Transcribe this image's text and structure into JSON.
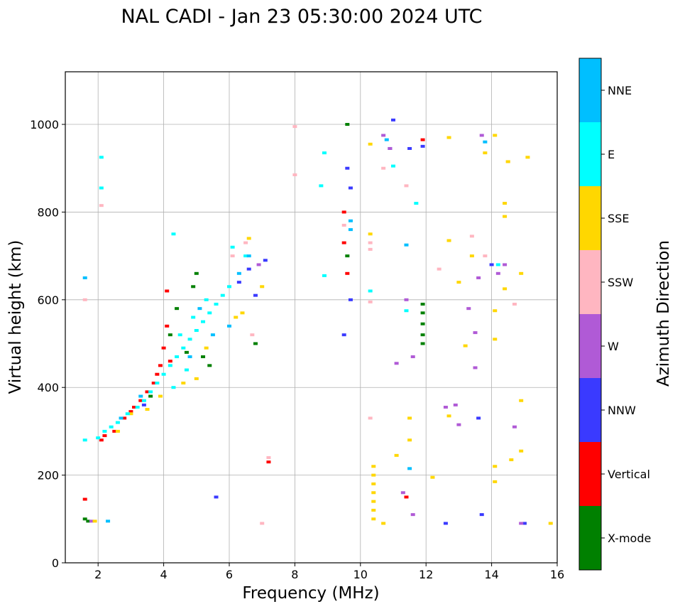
{
  "chart_data": {
    "type": "scatter",
    "title": "NAL CADI - Jan 23 05:30:00 2024 UTC",
    "xlabel": "Frequency (MHz)",
    "ylabel": "Virtual height (km)",
    "xlim": [
      1,
      16
    ],
    "ylim": [
      0,
      1120
    ],
    "xticks": [
      2,
      4,
      6,
      8,
      10,
      12,
      14,
      16
    ],
    "yticks": [
      0,
      200,
      400,
      600,
      800,
      1000
    ],
    "grid": true,
    "colorbar": {
      "label": "Azimuth Direction",
      "categories": [
        {
          "name": "X-mode",
          "color": "#008000"
        },
        {
          "name": "Vertical",
          "color": "#ff0000"
        },
        {
          "name": "NNW",
          "color": "#3a3aff"
        },
        {
          "name": "W",
          "color": "#b05ad6"
        },
        {
          "name": "SSW",
          "color": "#ffb6c1"
        },
        {
          "name": "SSE",
          "color": "#ffd700"
        },
        {
          "name": "E",
          "color": "#00ffff"
        },
        {
          "name": "NNE",
          "color": "#00bfff"
        }
      ]
    },
    "series": [
      {
        "name": "X-mode",
        "points": [
          [
            1.6,
            100
          ],
          [
            1.7,
            95
          ],
          [
            4.2,
            520
          ],
          [
            4.4,
            580
          ],
          [
            4.7,
            480
          ],
          [
            5.2,
            470
          ],
          [
            5.0,
            660
          ],
          [
            6.8,
            500
          ],
          [
            9.6,
            700
          ],
          [
            9.6,
            1000
          ],
          [
            11.9,
            500
          ],
          [
            11.9,
            520
          ],
          [
            11.9,
            545
          ],
          [
            11.9,
            570
          ],
          [
            11.9,
            590
          ],
          [
            15.0,
            90
          ],
          [
            4.9,
            630
          ],
          [
            5.4,
            450
          ],
          [
            3.6,
            380
          ]
        ]
      },
      {
        "name": "Vertical",
        "points": [
          [
            1.6,
            145
          ],
          [
            2.1,
            280
          ],
          [
            2.2,
            290
          ],
          [
            2.5,
            300
          ],
          [
            2.8,
            330
          ],
          [
            3.1,
            355
          ],
          [
            3.3,
            370
          ],
          [
            3.5,
            390
          ],
          [
            3.7,
            410
          ],
          [
            3.9,
            450
          ],
          [
            4.0,
            490
          ],
          [
            4.1,
            540
          ],
          [
            4.1,
            620
          ],
          [
            4.2,
            460
          ],
          [
            3.8,
            430
          ],
          [
            3.0,
            345
          ],
          [
            7.2,
            230
          ],
          [
            9.5,
            800
          ],
          [
            9.6,
            660
          ],
          [
            11.4,
            150
          ],
          [
            11.9,
            965
          ],
          [
            9.5,
            730
          ]
        ]
      },
      {
        "name": "NNW",
        "points": [
          [
            5.6,
            150
          ],
          [
            9.6,
            900
          ],
          [
            9.7,
            855
          ],
          [
            9.7,
            600
          ],
          [
            9.5,
            520
          ],
          [
            10.9,
            945
          ],
          [
            11.0,
            1010
          ],
          [
            11.5,
            945
          ],
          [
            11.9,
            950
          ],
          [
            12.6,
            90
          ],
          [
            13.6,
            330
          ],
          [
            13.7,
            110
          ],
          [
            14.0,
            680
          ],
          [
            15.0,
            90
          ],
          [
            6.3,
            640
          ],
          [
            6.6,
            670
          ],
          [
            6.8,
            610
          ],
          [
            7.1,
            690
          ],
          [
            3.4,
            360
          ]
        ]
      },
      {
        "name": "W",
        "points": [
          [
            1.8,
            95
          ],
          [
            10.7,
            975
          ],
          [
            10.9,
            945
          ],
          [
            11.1,
            455
          ],
          [
            11.4,
            600
          ],
          [
            11.6,
            470
          ],
          [
            11.6,
            110
          ],
          [
            12.6,
            355
          ],
          [
            12.9,
            360
          ],
          [
            13.0,
            315
          ],
          [
            13.3,
            580
          ],
          [
            13.5,
            525
          ],
          [
            13.5,
            445
          ],
          [
            13.6,
            650
          ],
          [
            13.7,
            975
          ],
          [
            14.2,
            660
          ],
          [
            14.4,
            680
          ],
          [
            14.7,
            310
          ],
          [
            14.9,
            90
          ],
          [
            11.3,
            160
          ],
          [
            6.9,
            680
          ]
        ]
      },
      {
        "name": "SSW",
        "points": [
          [
            1.6,
            600
          ],
          [
            2.1,
            815
          ],
          [
            7.2,
            240
          ],
          [
            8.0,
            995
          ],
          [
            8.0,
            885
          ],
          [
            9.5,
            770
          ],
          [
            10.3,
            330
          ],
          [
            10.3,
            730
          ],
          [
            10.3,
            715
          ],
          [
            10.3,
            595
          ],
          [
            10.7,
            900
          ],
          [
            11.4,
            860
          ],
          [
            12.4,
            670
          ],
          [
            13.4,
            745
          ],
          [
            13.8,
            700
          ],
          [
            14.5,
            915
          ],
          [
            14.7,
            590
          ],
          [
            7.0,
            90
          ],
          [
            6.5,
            730
          ],
          [
            6.1,
            700
          ],
          [
            6.7,
            520
          ]
        ]
      },
      {
        "name": "SSE",
        "points": [
          [
            1.9,
            95
          ],
          [
            10.4,
            220
          ],
          [
            10.4,
            200
          ],
          [
            10.4,
            180
          ],
          [
            10.4,
            160
          ],
          [
            10.4,
            140
          ],
          [
            10.4,
            120
          ],
          [
            10.4,
            100
          ],
          [
            10.3,
            750
          ],
          [
            10.3,
            955
          ],
          [
            10.7,
            90
          ],
          [
            11.1,
            245
          ],
          [
            11.5,
            330
          ],
          [
            11.5,
            280
          ],
          [
            12.2,
            195
          ],
          [
            12.7,
            970
          ],
          [
            12.7,
            735
          ],
          [
            12.7,
            335
          ],
          [
            13.0,
            640
          ],
          [
            13.2,
            495
          ],
          [
            13.4,
            700
          ],
          [
            13.8,
            935
          ],
          [
            14.1,
            975
          ],
          [
            14.1,
            575
          ],
          [
            14.1,
            510
          ],
          [
            14.1,
            220
          ],
          [
            14.1,
            185
          ],
          [
            14.4,
            820
          ],
          [
            14.4,
            790
          ],
          [
            14.4,
            625
          ],
          [
            14.5,
            915
          ],
          [
            14.6,
            235
          ],
          [
            14.9,
            370
          ],
          [
            14.9,
            255
          ],
          [
            14.9,
            660
          ],
          [
            15.1,
            925
          ],
          [
            15.8,
            90
          ],
          [
            2.6,
            300
          ],
          [
            3.0,
            340
          ],
          [
            3.5,
            350
          ],
          [
            3.9,
            380
          ],
          [
            4.6,
            410
          ],
          [
            5.0,
            420
          ],
          [
            5.3,
            490
          ],
          [
            6.2,
            560
          ],
          [
            6.4,
            570
          ],
          [
            6.6,
            740
          ],
          [
            7.0,
            630
          ]
        ]
      },
      {
        "name": "E",
        "points": [
          [
            1.6,
            280
          ],
          [
            2.0,
            285
          ],
          [
            2.2,
            300
          ],
          [
            2.4,
            310
          ],
          [
            2.6,
            320
          ],
          [
            2.9,
            340
          ],
          [
            3.2,
            355
          ],
          [
            3.4,
            370
          ],
          [
            3.6,
            390
          ],
          [
            3.8,
            410
          ],
          [
            4.0,
            430
          ],
          [
            4.2,
            450
          ],
          [
            4.4,
            470
          ],
          [
            4.6,
            490
          ],
          [
            4.8,
            510
          ],
          [
            5.0,
            530
          ],
          [
            5.2,
            550
          ],
          [
            5.4,
            570
          ],
          [
            5.6,
            590
          ],
          [
            5.8,
            610
          ],
          [
            6.0,
            630
          ],
          [
            4.5,
            520
          ],
          [
            4.9,
            560
          ],
          [
            5.3,
            600
          ],
          [
            4.3,
            400
          ],
          [
            4.7,
            440
          ],
          [
            2.1,
            925
          ],
          [
            2.1,
            855
          ],
          [
            4.3,
            750
          ],
          [
            8.9,
            935
          ],
          [
            8.8,
            860
          ],
          [
            8.9,
            655
          ],
          [
            10.3,
            620
          ],
          [
            11.0,
            905
          ],
          [
            11.4,
            575
          ],
          [
            11.7,
            820
          ],
          [
            14.2,
            680
          ],
          [
            6.5,
            700
          ],
          [
            6.1,
            720
          ]
        ]
      },
      {
        "name": "NNE",
        "points": [
          [
            1.6,
            650
          ],
          [
            2.3,
            95
          ],
          [
            9.7,
            780
          ],
          [
            9.7,
            760
          ],
          [
            10.8,
            965
          ],
          [
            11.4,
            725
          ],
          [
            11.5,
            215
          ],
          [
            13.8,
            960
          ],
          [
            5.5,
            520
          ],
          [
            5.1,
            580
          ],
          [
            4.8,
            470
          ],
          [
            6.0,
            540
          ],
          [
            6.3,
            660
          ],
          [
            6.6,
            700
          ],
          [
            2.7,
            330
          ],
          [
            3.3,
            380
          ]
        ]
      }
    ]
  }
}
